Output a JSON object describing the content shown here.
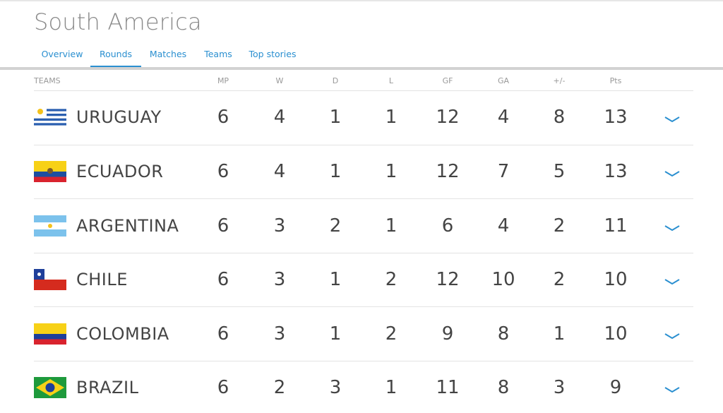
{
  "header": {
    "title": "South America",
    "tabs": [
      "Overview",
      "Rounds",
      "Matches",
      "Teams",
      "Top stories"
    ]
  },
  "table": {
    "columns": [
      "TEAMS",
      "MP",
      "W",
      "D",
      "L",
      "GF",
      "GA",
      "+/-",
      "Pts"
    ],
    "rows": [
      [
        "URUGUAY",
        6,
        4,
        1,
        1,
        12,
        4,
        8,
        13
      ],
      [
        "ECUADOR",
        6,
        4,
        1,
        1,
        12,
        7,
        5,
        13
      ],
      [
        "ARGENTINA",
        6,
        3,
        2,
        1,
        6,
        4,
        2,
        11
      ],
      [
        "CHILE",
        6,
        3,
        1,
        2,
        12,
        10,
        2,
        10
      ],
      [
        "COLOMBIA",
        6,
        3,
        1,
        2,
        9,
        8,
        1,
        10
      ],
      [
        "BRAZIL",
        6,
        2,
        3,
        1,
        11,
        8,
        3,
        9
      ]
    ]
  }
}
